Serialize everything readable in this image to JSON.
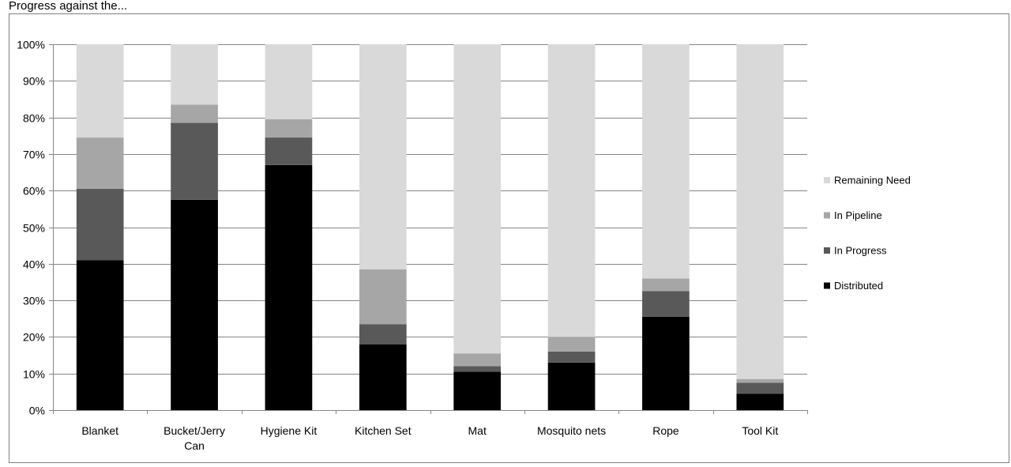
{
  "chart_data": {
    "type": "bar",
    "stacked": true,
    "title": "Progress against the...",
    "categories": [
      "Blanket",
      "Bucket/Jerry Can",
      "Hygiene Kit",
      "Kitchen Set",
      "Mat",
      "Mosquito nets",
      "Rope",
      "Tool Kit"
    ],
    "category_lines": [
      [
        "Blanket"
      ],
      [
        "Bucket/Jerry",
        "Can"
      ],
      [
        "Hygiene Kit"
      ],
      [
        "Kitchen Set"
      ],
      [
        "Mat"
      ],
      [
        "Mosquito nets"
      ],
      [
        "Rope"
      ],
      [
        "Tool Kit"
      ]
    ],
    "series": [
      {
        "name": "Distributed",
        "color": "#000000",
        "values": [
          41,
          57.5,
          67,
          18,
          10.5,
          13,
          25.5,
          4.5
        ]
      },
      {
        "name": "In Progress",
        "color": "#595959",
        "values": [
          19.5,
          21,
          7.5,
          5.5,
          1.5,
          3,
          7,
          3
        ]
      },
      {
        "name": "In Pipeline",
        "color": "#a6a6a6",
        "values": [
          14,
          5,
          5,
          15,
          3.5,
          4,
          3.5,
          1
        ]
      },
      {
        "name": "Remaining Need",
        "color": "#d9d9d9",
        "values": [
          25.5,
          16.5,
          20.5,
          61.5,
          84.5,
          80,
          64,
          91.5
        ]
      }
    ],
    "ylim": [
      0,
      100
    ],
    "yticks": [
      "0%",
      "10%",
      "20%",
      "30%",
      "40%",
      "50%",
      "60%",
      "70%",
      "80%",
      "90%",
      "100%"
    ],
    "grid": true,
    "legend": "right"
  }
}
